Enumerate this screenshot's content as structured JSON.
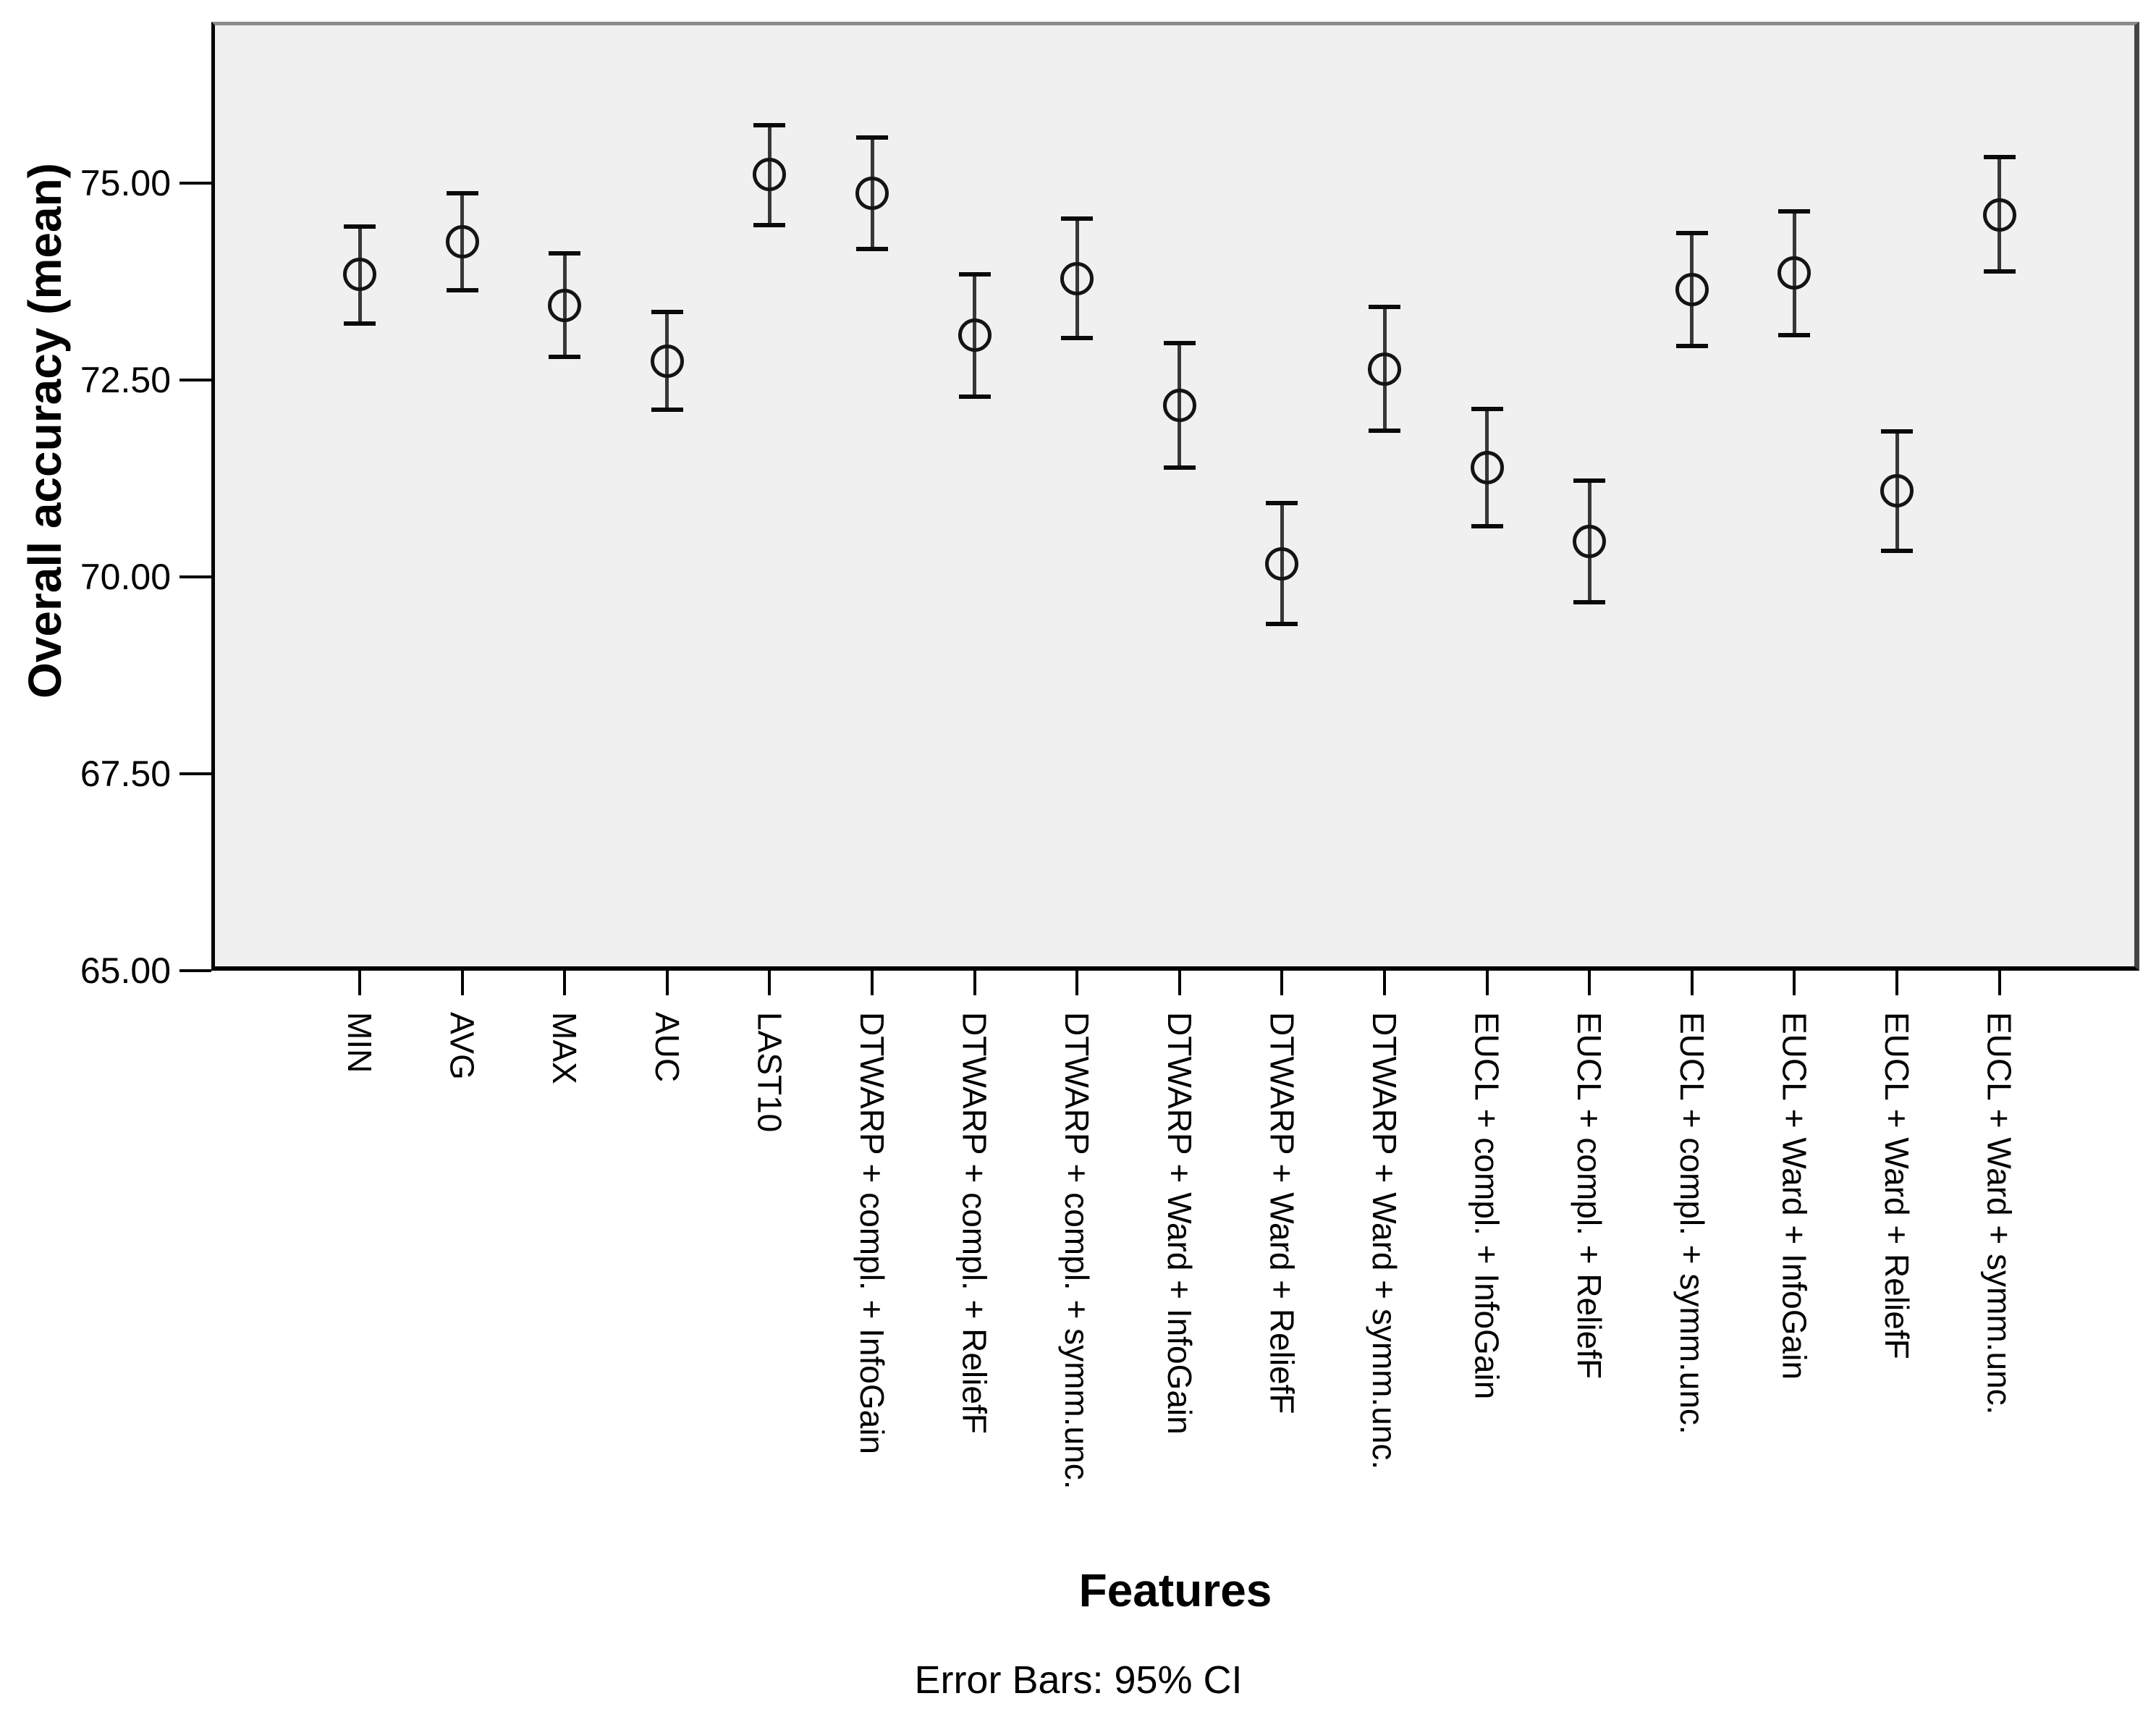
{
  "figure": {
    "y_axis_title": "Overall accuracy (mean)",
    "x_axis_title": "Features",
    "caption": "Error Bars: 95% CI"
  },
  "colors": {
    "plot_background": "#f0f0f0",
    "error_bar_line": "#383838",
    "error_bar_cap": "#0a0a0a",
    "marker_outline": "#141414",
    "axis_line": "#000000"
  },
  "chart_data": {
    "type": "scatter",
    "subtype": "error-bar-chart",
    "marker": "open-circle",
    "error_bars": "95% CI",
    "title": "",
    "xlabel": "Features",
    "ylabel": "Overall accuracy (mean)",
    "ylim": [
      65.0,
      77.05
    ],
    "grid": false,
    "legend": "none",
    "x_tick_rotation": 90,
    "y_ticks": [
      75.0,
      72.5,
      70.0,
      67.5,
      65.0
    ],
    "y_tick_labels": [
      "75.00",
      "72.50",
      "70.00",
      "67.50",
      "65.00"
    ],
    "points": [
      {
        "label": "MIN",
        "mean": 73.84,
        "ci_low": 73.22,
        "ci_high": 74.45
      },
      {
        "label": "AVG",
        "mean": 74.26,
        "ci_low": 73.64,
        "ci_high": 74.87
      },
      {
        "label": "MAX",
        "mean": 73.45,
        "ci_low": 72.79,
        "ci_high": 74.11
      },
      {
        "label": "AUC",
        "mean": 72.74,
        "ci_low": 72.12,
        "ci_high": 73.36
      },
      {
        "label": "LAST10",
        "mean": 75.11,
        "ci_low": 74.47,
        "ci_high": 75.74
      },
      {
        "label": "DTWARP + compl. + InfoGain",
        "mean": 74.87,
        "ci_low": 74.16,
        "ci_high": 75.58
      },
      {
        "label": "DTWARP + compl. + ReliefF",
        "mean": 73.07,
        "ci_low": 72.29,
        "ci_high": 73.84
      },
      {
        "label": "DTWARP + compl. + symm.unc.",
        "mean": 73.79,
        "ci_low": 73.03,
        "ci_high": 74.55
      },
      {
        "label": "DTWARP + Ward + InfoGain",
        "mean": 72.18,
        "ci_low": 71.39,
        "ci_high": 72.97
      },
      {
        "label": "DTWARP + Ward + ReliefF",
        "mean": 70.17,
        "ci_low": 69.4,
        "ci_high": 70.94
      },
      {
        "label": "DTWARP + Ward + symm.unc.",
        "mean": 72.64,
        "ci_low": 71.86,
        "ci_high": 73.43
      },
      {
        "label": "EUCL + compl. + InfoGain",
        "mean": 71.39,
        "ci_low": 70.64,
        "ci_high": 72.13
      },
      {
        "label": "EUCL + compl. + ReliefF",
        "mean": 70.45,
        "ci_low": 69.68,
        "ci_high": 71.22
      },
      {
        "label": "EUCL + compl. + symm.unc.",
        "mean": 73.65,
        "ci_low": 72.93,
        "ci_high": 74.37
      },
      {
        "label": "EUCL + Ward + InfoGain",
        "mean": 73.86,
        "ci_low": 73.07,
        "ci_high": 74.64
      },
      {
        "label": "EUCL + Ward + ReliefF",
        "mean": 71.09,
        "ci_low": 70.33,
        "ci_high": 71.85
      },
      {
        "label": "EUCL + Ward + symm.unc.",
        "mean": 74.6,
        "ci_low": 73.88,
        "ci_high": 75.33
      }
    ]
  }
}
